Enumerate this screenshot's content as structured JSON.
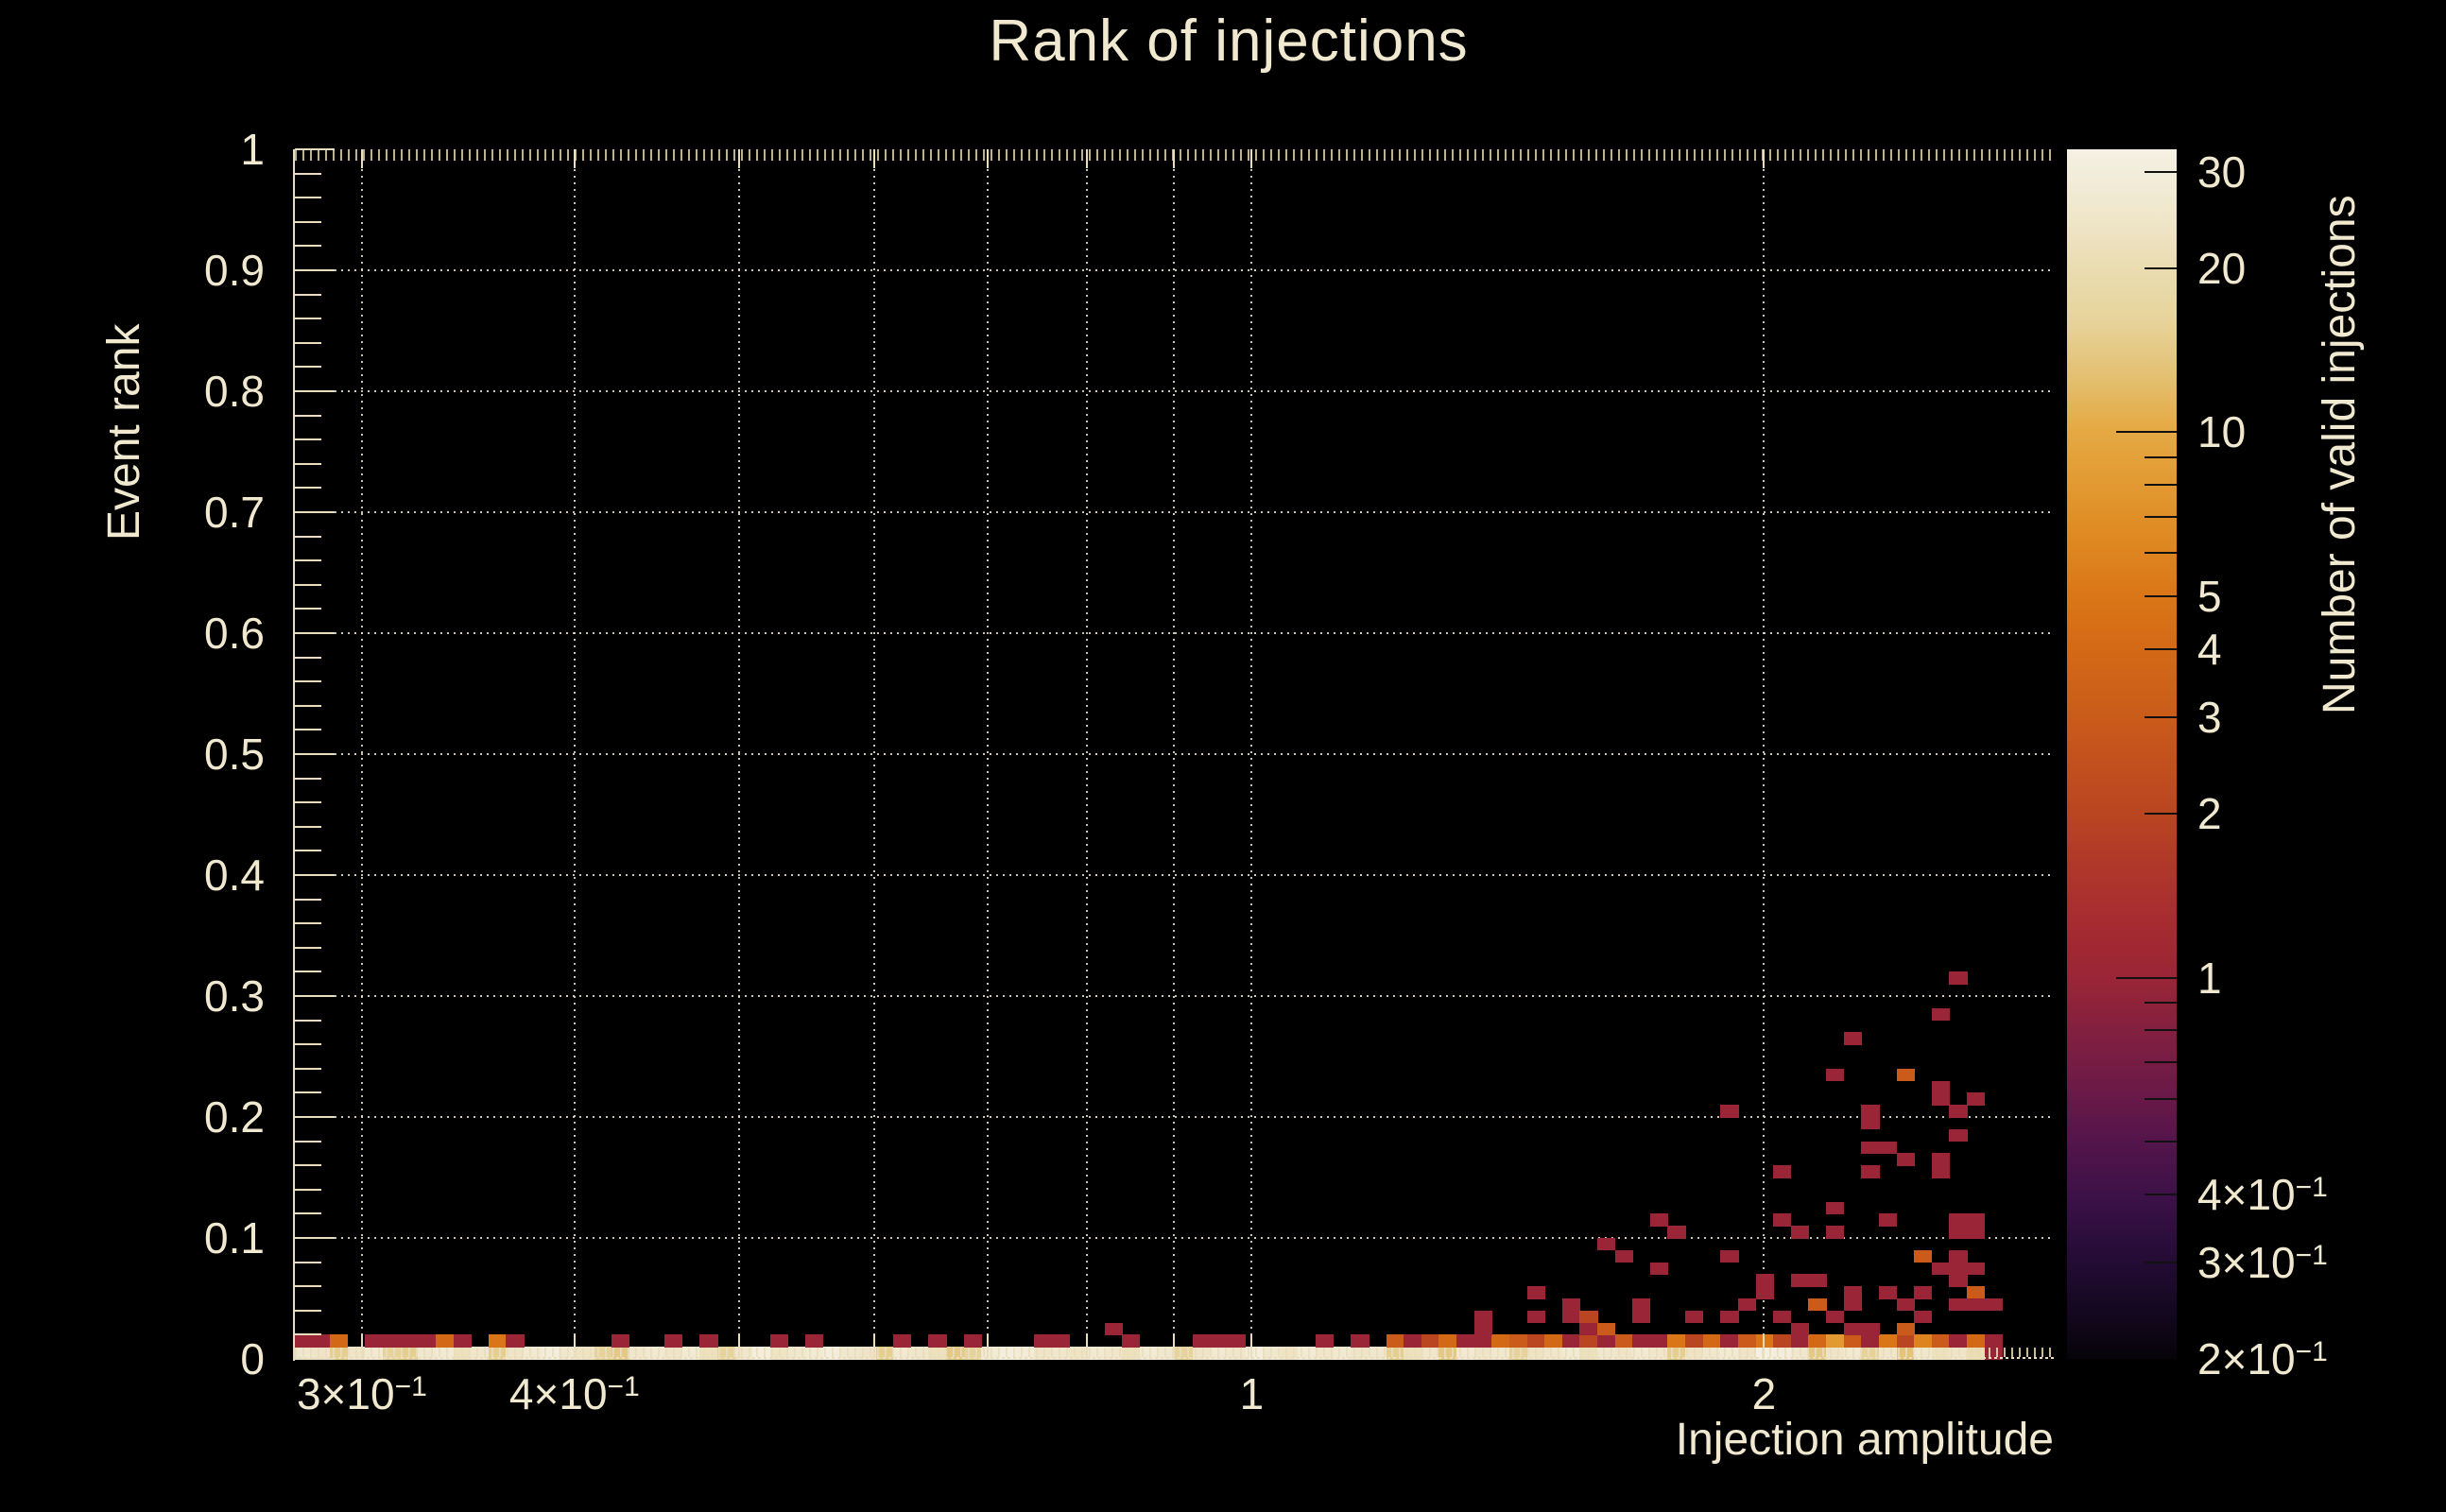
{
  "title": "Rank of injections",
  "chart_data": {
    "type": "heatmap",
    "title": "Rank of injections",
    "xlabel": "Injection amplitude",
    "ylabel": "Event rank",
    "zlabel": "Number of valid injections",
    "x_scale": "log",
    "x_range": [
      0.274,
      2.96
    ],
    "y_scale": "linear",
    "y_range": [
      0,
      1
    ],
    "z_scale": "log",
    "z_range": [
      0.2,
      33
    ],
    "grid": true,
    "background_color": "#000000",
    "text_color": "#f0e8cf",
    "axis_color": "#e9ddbd",
    "x_grid_values": [
      0.3,
      0.4,
      0.5,
      0.6,
      0.7,
      0.8,
      0.9,
      1,
      2
    ],
    "y_grid_values": [
      0.1,
      0.2,
      0.3,
      0.4,
      0.5,
      0.6,
      0.7,
      0.8,
      0.9
    ],
    "x_ticks": [
      {
        "t": "3×10",
        "s": "−1",
        "v": 0.3
      },
      {
        "t": "4×10",
        "s": "−1",
        "v": 0.4
      },
      {
        "t": "1",
        "s": "",
        "v": 1
      },
      {
        "t": "2",
        "s": "",
        "v": 2
      }
    ],
    "y_tick_labels": [
      {
        "t": "0",
        "v": 0
      },
      {
        "t": "0.1",
        "v": 0.1
      },
      {
        "t": "0.2",
        "v": 0.2
      },
      {
        "t": "0.3",
        "v": 0.3
      },
      {
        "t": "0.4",
        "v": 0.4
      },
      {
        "t": "0.5",
        "v": 0.5
      },
      {
        "t": "0.6",
        "v": 0.6
      },
      {
        "t": "0.7",
        "v": 0.7
      },
      {
        "t": "0.8",
        "v": 0.8
      },
      {
        "t": "0.9",
        "v": 0.9
      },
      {
        "t": "1",
        "v": 1
      }
    ],
    "colorbar_labels": [
      {
        "t": "30",
        "s": "",
        "v": 30
      },
      {
        "t": "20",
        "s": "",
        "v": 20
      },
      {
        "t": "10",
        "s": "",
        "v": 10
      },
      {
        "t": "5",
        "s": "",
        "v": 5
      },
      {
        "t": "4",
        "s": "",
        "v": 4
      },
      {
        "t": "3",
        "s": "",
        "v": 3
      },
      {
        "t": "2",
        "s": "",
        "v": 2
      },
      {
        "t": "1",
        "s": "",
        "v": 1
      },
      {
        "t": "4×10",
        "s": "−1",
        "v": 0.4
      },
      {
        "t": "3×10",
        "s": "−1",
        "v": 0.3
      },
      {
        "t": "2×10",
        "s": "−1",
        "v": 0.2
      }
    ],
    "colorbar_major_ticks": [
      1,
      10
    ],
    "colorbar_minor_ticks": [
      0.3,
      0.4,
      0.5,
      0.6,
      0.7,
      0.8,
      0.9,
      2,
      3,
      4,
      5,
      6,
      7,
      8,
      9,
      20,
      30
    ],
    "palette_stops": [
      [
        0.0,
        "#060309"
      ],
      [
        0.04,
        "#140820"
      ],
      [
        0.085,
        "#250c36"
      ],
      [
        0.13,
        "#3a1147"
      ],
      [
        0.18,
        "#54154b"
      ],
      [
        0.225,
        "#6d1a47"
      ],
      [
        0.265,
        "#7f1f41"
      ],
      [
        0.315,
        "#9a2536"
      ],
      [
        0.36,
        "#a62b31"
      ],
      [
        0.42,
        "#b23b28"
      ],
      [
        0.45,
        "#b94521"
      ],
      [
        0.5,
        "#c4521d"
      ],
      [
        0.53,
        "#ca5b1a"
      ],
      [
        0.59,
        "#d46a16"
      ],
      [
        0.63,
        "#da7617"
      ],
      [
        0.69,
        "#e08d25"
      ],
      [
        0.77,
        "#e5aa44"
      ],
      [
        0.81,
        "#e3bf6f"
      ],
      [
        0.86,
        "#e7d49c"
      ],
      [
        0.9,
        "#eadcb0"
      ],
      [
        0.94,
        "#efe5c8"
      ],
      [
        0.98,
        "#f2eddb"
      ],
      [
        1.0,
        "#f4f0e4"
      ]
    ],
    "x_bins": {
      "count": 97,
      "min": 0.274,
      "max": 2.76
    },
    "y_bin_height": 0.01,
    "bottom_row_counts": [
      26,
      24,
      15,
      24,
      27,
      16,
      15,
      26,
      28,
      22,
      25,
      15,
      24,
      27,
      30,
      26,
      23,
      16,
      14,
      25,
      27,
      24,
      28,
      22,
      16,
      25,
      31,
      23,
      26,
      28,
      30,
      26,
      24,
      15,
      27,
      25,
      22,
      14,
      16,
      28,
      31,
      29,
      24,
      26,
      23,
      27,
      25,
      22,
      28,
      26,
      16,
      24,
      27,
      25,
      30,
      26,
      23,
      28,
      25,
      27,
      24,
      26,
      15,
      22,
      25,
      14,
      27,
      24,
      26,
      16,
      23,
      25,
      28,
      22,
      26,
      24,
      27,
      25,
      15,
      23,
      26,
      28,
      24,
      33,
      30,
      26,
      14,
      24,
      27,
      16,
      25,
      13,
      26,
      22,
      24,
      20,
      1
    ],
    "row1_cells": [
      [
        0,
        1
      ],
      [
        1,
        1
      ],
      [
        2,
        4
      ],
      [
        4,
        1
      ],
      [
        5,
        1
      ],
      [
        6,
        1
      ],
      [
        7,
        1
      ],
      [
        8,
        4
      ],
      [
        9,
        1
      ],
      [
        11,
        5
      ],
      [
        12,
        1
      ],
      [
        18,
        1
      ],
      [
        21,
        1
      ],
      [
        23,
        1
      ],
      [
        27,
        1
      ],
      [
        29,
        1
      ],
      [
        34,
        1
      ],
      [
        36,
        1
      ],
      [
        38,
        1
      ],
      [
        42,
        1
      ],
      [
        43,
        1
      ],
      [
        47,
        1
      ],
      [
        51,
        1
      ],
      [
        52,
        1
      ],
      [
        53,
        1
      ],
      [
        58,
        1
      ],
      [
        60,
        1
      ],
      [
        62,
        3
      ],
      [
        63,
        1
      ],
      [
        64,
        2
      ],
      [
        65,
        4
      ],
      [
        66,
        1
      ],
      [
        67,
        1
      ],
      [
        68,
        4
      ],
      [
        69,
        3
      ],
      [
        70,
        2
      ],
      [
        71,
        4
      ],
      [
        72,
        1
      ],
      [
        73,
        2
      ],
      [
        74,
        1
      ],
      [
        75,
        3
      ],
      [
        76,
        1
      ],
      [
        77,
        1
      ],
      [
        78,
        5
      ],
      [
        79,
        2
      ],
      [
        80,
        4
      ],
      [
        81,
        1
      ],
      [
        82,
        3
      ],
      [
        83,
        5
      ],
      [
        84,
        2
      ],
      [
        85,
        1
      ],
      [
        86,
        4
      ],
      [
        87,
        8
      ],
      [
        88,
        3
      ],
      [
        89,
        1
      ],
      [
        90,
        5
      ],
      [
        91,
        2
      ],
      [
        92,
        6
      ],
      [
        93,
        3
      ],
      [
        94,
        1
      ],
      [
        95,
        4
      ],
      [
        96,
        1
      ]
    ],
    "cells": [
      [
        94,
        31,
        1
      ],
      [
        93,
        28,
        1
      ],
      [
        88,
        26,
        1
      ],
      [
        87,
        23,
        1
      ],
      [
        91,
        23,
        3
      ],
      [
        93,
        22,
        1
      ],
      [
        93,
        21,
        1
      ],
      [
        95,
        21,
        1
      ],
      [
        81,
        20,
        1
      ],
      [
        89,
        20,
        1
      ],
      [
        94,
        20,
        1
      ],
      [
        89,
        19,
        1
      ],
      [
        94,
        18,
        1
      ],
      [
        89,
        17,
        1
      ],
      [
        90,
        17,
        1
      ],
      [
        91,
        16,
        1
      ],
      [
        93,
        16,
        1
      ],
      [
        84,
        15,
        1
      ],
      [
        89,
        15,
        1
      ],
      [
        93,
        15,
        1
      ],
      [
        87,
        12,
        1
      ],
      [
        77,
        11,
        1
      ],
      [
        84,
        11,
        1
      ],
      [
        90,
        11,
        1
      ],
      [
        94,
        11,
        1
      ],
      [
        95,
        11,
        1
      ],
      [
        78,
        10,
        1
      ],
      [
        85,
        10,
        1
      ],
      [
        87,
        10,
        1
      ],
      [
        94,
        10,
        1
      ],
      [
        95,
        10,
        1
      ],
      [
        74,
        9,
        1
      ],
      [
        75,
        8,
        1
      ],
      [
        81,
        8,
        1
      ],
      [
        92,
        8,
        3
      ],
      [
        94,
        8,
        1
      ],
      [
        77,
        7,
        1
      ],
      [
        93,
        7,
        1
      ],
      [
        94,
        7,
        1
      ],
      [
        95,
        7,
        1
      ],
      [
        83,
        6,
        1
      ],
      [
        85,
        6,
        1
      ],
      [
        86,
        6,
        1
      ],
      [
        94,
        6,
        1
      ],
      [
        70,
        5,
        1
      ],
      [
        83,
        5,
        1
      ],
      [
        88,
        5,
        1
      ],
      [
        90,
        5,
        1
      ],
      [
        92,
        5,
        1
      ],
      [
        95,
        5,
        3
      ],
      [
        72,
        4,
        1
      ],
      [
        76,
        4,
        1
      ],
      [
        82,
        4,
        1
      ],
      [
        86,
        4,
        3
      ],
      [
        88,
        4,
        1
      ],
      [
        91,
        4,
        1
      ],
      [
        94,
        4,
        1
      ],
      [
        95,
        4,
        1
      ],
      [
        96,
        4,
        1
      ],
      [
        67,
        3,
        1
      ],
      [
        70,
        3,
        1
      ],
      [
        72,
        3,
        1
      ],
      [
        73,
        3,
        2
      ],
      [
        76,
        3,
        1
      ],
      [
        79,
        3,
        1
      ],
      [
        81,
        3,
        1
      ],
      [
        84,
        3,
        1
      ],
      [
        87,
        3,
        1
      ],
      [
        92,
        3,
        1
      ],
      [
        46,
        2,
        1
      ],
      [
        67,
        2,
        1
      ],
      [
        73,
        2,
        1
      ],
      [
        74,
        2,
        3
      ],
      [
        85,
        2,
        1
      ],
      [
        88,
        2,
        1
      ],
      [
        89,
        2,
        1
      ],
      [
        91,
        2,
        3
      ]
    ]
  }
}
